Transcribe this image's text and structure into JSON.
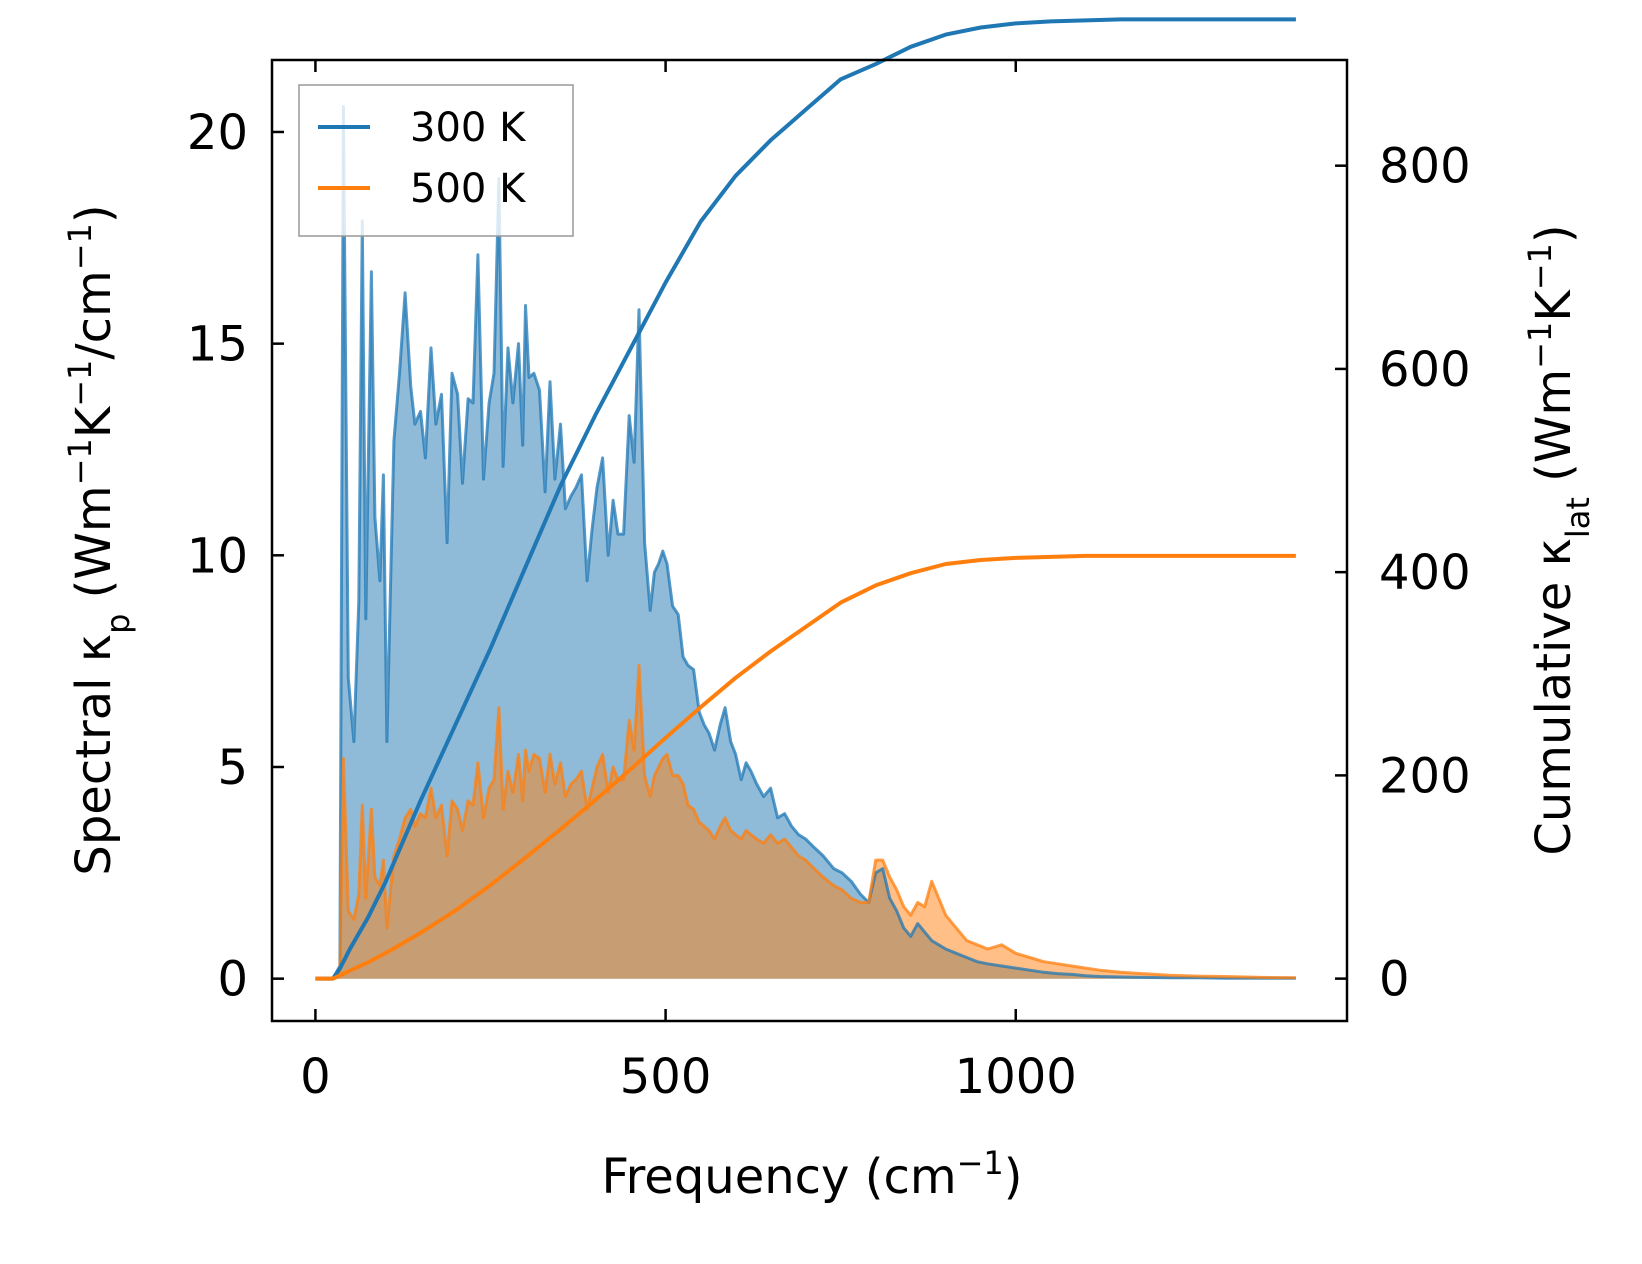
{
  "chart_data": {
    "type": "line",
    "xlabel_base": "Frequency (cm",
    "xlabel_sup": "−1",
    "xlabel_end": ")",
    "ylabel_left": {
      "t1": "Spectral κ",
      "sub": "p",
      "t2": " (Wm",
      "sup1": "−1",
      "t3": "K",
      "sup2": "−1",
      "t4": "/cm",
      "sup3": "−1",
      "t5": ")"
    },
    "ylabel_right": {
      "t1": "Cumulative κ",
      "sub": "lat",
      "t2": " (Wm",
      "sup1": "−1",
      "t3": "K",
      "sup2": "−1",
      "t4": ")"
    },
    "xlim": [
      -62,
      1473
    ],
    "ylim_left": [
      -1.0,
      21.7
    ],
    "ylim_right": [
      -41.7,
      904
    ],
    "x_ticks": [
      0,
      500,
      1000
    ],
    "x_tick_labels": [
      "0",
      "500",
      "1000"
    ],
    "y_left_ticks": [
      0,
      5,
      10,
      15,
      20
    ],
    "y_left_tick_labels": [
      "0",
      "5",
      "10",
      "15",
      "20"
    ],
    "y_right_ticks": [
      0,
      200,
      400,
      600,
      800
    ],
    "y_right_tick_labels": [
      "0",
      "200",
      "400",
      "600",
      "800"
    ],
    "legend_position": "upper left",
    "series": [
      {
        "name": "300 K",
        "color": "#1f77b4",
        "spectral": {
          "x": [
            10,
            25,
            35,
            40,
            47,
            55,
            62,
            67,
            72,
            80,
            85,
            92,
            97,
            102,
            112,
            120,
            128,
            136,
            142,
            150,
            157,
            165,
            172,
            180,
            188,
            195,
            203,
            210,
            218,
            225,
            232,
            240,
            248,
            255,
            262,
            268,
            275,
            282,
            290,
            296,
            300,
            305,
            312,
            320,
            328,
            335,
            342,
            350,
            357,
            365,
            372,
            380,
            388,
            395,
            402,
            410,
            418,
            425,
            432,
            440,
            448,
            455,
            462,
            470,
            478,
            484,
            490,
            496,
            502,
            510,
            518,
            525,
            532,
            540,
            548,
            555,
            562,
            570,
            578,
            585,
            593,
            600,
            608,
            615,
            622,
            630,
            640,
            650,
            660,
            670,
            680,
            690,
            700,
            712,
            725,
            740,
            752,
            765,
            778,
            790,
            800,
            810,
            820,
            830,
            840,
            850,
            860,
            870,
            880,
            890,
            900,
            915,
            930,
            945,
            960,
            980,
            1000,
            1020,
            1040,
            1060,
            1080,
            1100,
            1120,
            1150,
            1180,
            1220,
            1260,
            1300,
            1350,
            1400
          ],
          "y": [
            0,
            0,
            0.3,
            20.6,
            7.1,
            5.6,
            8.9,
            17.9,
            8.5,
            16.7,
            10.9,
            9.4,
            11.9,
            5.6,
            12.7,
            14.3,
            16.2,
            14.0,
            13.1,
            13.4,
            12.3,
            14.9,
            13.1,
            13.8,
            10.3,
            14.3,
            13.8,
            11.7,
            13.7,
            13.6,
            17.1,
            11.8,
            13.6,
            14.3,
            18.9,
            12.1,
            14.9,
            13.6,
            15.0,
            12.6,
            15.9,
            14.2,
            14.3,
            13.9,
            11.5,
            14.1,
            11.8,
            13.1,
            11.1,
            11.4,
            11.6,
            11.9,
            9.4,
            10.6,
            11.6,
            12.3,
            10.0,
            11.3,
            10.5,
            10.5,
            13.3,
            12.2,
            15.8,
            10.3,
            8.7,
            9.6,
            9.8,
            10.1,
            9.8,
            8.8,
            8.6,
            7.6,
            7.4,
            7.3,
            6.3,
            6.0,
            5.8,
            5.4,
            6.0,
            6.4,
            5.6,
            5.3,
            4.7,
            5.1,
            4.9,
            4.6,
            4.3,
            4.5,
            3.8,
            3.9,
            3.6,
            3.4,
            3.3,
            3.1,
            2.9,
            2.6,
            2.5,
            2.3,
            2.0,
            1.8,
            2.5,
            2.6,
            1.9,
            1.6,
            1.2,
            1.0,
            1.3,
            1.1,
            0.9,
            0.8,
            0.7,
            0.6,
            0.5,
            0.4,
            0.35,
            0.3,
            0.25,
            0.2,
            0.15,
            0.12,
            0.1,
            0.07,
            0.05,
            0.04,
            0.03,
            0.02,
            0.02,
            0.01,
            0.01,
            0.01
          ]
        },
        "cumulative": {
          "x": [
            0,
            10,
            25,
            35,
            50,
            75,
            100,
            125,
            150,
            200,
            250,
            300,
            350,
            400,
            450,
            500,
            550,
            600,
            650,
            700,
            750,
            800,
            850,
            900,
            950,
            1000,
            1050,
            1100,
            1150,
            1200,
            1250,
            1300,
            1350,
            1400
          ],
          "y": [
            0,
            0,
            0,
            10,
            30,
            60,
            95,
            135,
            175,
            250,
            325,
            405,
            485,
            555,
            620,
            685,
            745,
            790,
            825,
            855,
            885,
            900,
            917,
            929,
            936,
            940,
            942,
            943,
            944,
            944,
            944,
            944,
            944,
            944
          ]
        }
      },
      {
        "name": "500 K",
        "color": "#ff7f0e",
        "spectral": {
          "x": [
            10,
            25,
            35,
            40,
            47,
            55,
            62,
            67,
            72,
            80,
            85,
            92,
            97,
            102,
            112,
            120,
            128,
            136,
            142,
            150,
            157,
            165,
            172,
            180,
            188,
            195,
            203,
            210,
            218,
            225,
            232,
            240,
            248,
            255,
            262,
            268,
            275,
            282,
            290,
            296,
            300,
            305,
            312,
            320,
            328,
            335,
            342,
            350,
            357,
            365,
            372,
            380,
            388,
            395,
            402,
            410,
            418,
            425,
            432,
            440,
            448,
            455,
            462,
            470,
            478,
            484,
            490,
            496,
            502,
            510,
            518,
            525,
            532,
            540,
            548,
            555,
            562,
            570,
            578,
            585,
            593,
            600,
            608,
            615,
            622,
            630,
            640,
            650,
            660,
            670,
            680,
            690,
            700,
            712,
            725,
            740,
            752,
            765,
            778,
            790,
            800,
            810,
            820,
            830,
            840,
            850,
            860,
            870,
            880,
            890,
            900,
            915,
            930,
            945,
            960,
            980,
            1000,
            1020,
            1040,
            1060,
            1080,
            1100,
            1120,
            1150,
            1180,
            1220,
            1260,
            1300,
            1350,
            1400
          ],
          "y": [
            0,
            0,
            0.1,
            5.2,
            1.6,
            1.4,
            2.0,
            4.1,
            1.9,
            4.0,
            2.4,
            2.2,
            2.8,
            1.2,
            2.9,
            3.3,
            3.8,
            4.0,
            3.6,
            3.9,
            3.8,
            4.5,
            3.8,
            4.1,
            2.9,
            4.2,
            4.0,
            3.5,
            4.2,
            4.1,
            5.1,
            3.8,
            4.5,
            4.7,
            6.4,
            4.0,
            4.9,
            4.4,
            5.3,
            4.2,
            5.4,
            4.9,
            5.3,
            5.2,
            4.4,
            5.3,
            4.6,
            5.1,
            4.3,
            4.6,
            4.7,
            4.9,
            4.0,
            4.5,
            5.0,
            5.3,
            4.4,
            5.0,
            4.7,
            4.7,
            6.1,
            5.4,
            7.4,
            4.8,
            4.3,
            4.8,
            5.0,
            5.2,
            5.3,
            4.8,
            4.8,
            4.6,
            4.1,
            4.0,
            3.7,
            3.6,
            3.5,
            3.3,
            3.6,
            3.8,
            3.5,
            3.4,
            3.3,
            3.5,
            3.4,
            3.3,
            3.2,
            3.4,
            3.2,
            3.3,
            3.1,
            2.9,
            2.8,
            2.6,
            2.4,
            2.2,
            2.1,
            1.9,
            1.8,
            1.8,
            2.8,
            2.8,
            2.4,
            2.1,
            1.7,
            1.5,
            1.8,
            1.7,
            2.3,
            1.9,
            1.5,
            1.2,
            0.9,
            0.8,
            0.7,
            0.8,
            0.6,
            0.5,
            0.4,
            0.35,
            0.3,
            0.25,
            0.2,
            0.15,
            0.12,
            0.08,
            0.06,
            0.05,
            0.03,
            0.02
          ]
        },
        "cumulative": {
          "x": [
            0,
            10,
            25,
            35,
            50,
            75,
            100,
            125,
            150,
            200,
            250,
            300,
            350,
            400,
            450,
            500,
            550,
            600,
            650,
            700,
            750,
            800,
            850,
            900,
            950,
            1000,
            1050,
            1100,
            1150,
            1200,
            1250,
            1300,
            1350,
            1400
          ],
          "y": [
            0,
            0,
            0,
            3,
            8,
            16,
            25,
            35,
            45,
            67,
            92,
            119,
            147,
            176,
            206,
            237,
            267,
            296,
            322,
            346,
            370,
            387,
            399,
            408,
            412,
            414,
            415,
            416,
            416,
            416,
            416,
            416,
            416,
            416
          ]
        }
      }
    ]
  }
}
